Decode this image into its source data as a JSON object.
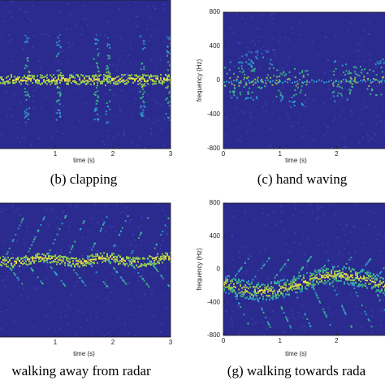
{
  "chart_data": [
    {
      "type": "spectrogram",
      "xlabel": "time (s)",
      "caption": "(b) clapping",
      "xlim": [
        0,
        3
      ],
      "xticks": [
        1,
        2,
        3
      ]
    },
    {
      "type": "spectrogram",
      "xlabel": "time (s)",
      "ylabel": "frequency (Hz)",
      "caption": "(c) hand waving",
      "xlim": [
        0,
        3
      ],
      "xticks": [
        0,
        1,
        2
      ],
      "ylim": [
        -800,
        800
      ],
      "yticks": [
        -800,
        -400,
        0,
        400,
        800
      ]
    },
    {
      "type": "spectrogram",
      "xlabel": "time (s)",
      "caption": "walking away from radar",
      "xlim": [
        0,
        3
      ],
      "xticks": [
        1,
        2,
        3
      ]
    },
    {
      "type": "spectrogram",
      "xlabel": "time (s)",
      "ylabel": "frequency (Hz)",
      "caption": "(g) walking towards rada",
      "xlim": [
        0,
        3
      ],
      "xticks": [
        0,
        1,
        2
      ],
      "ylim": [
        -800,
        800
      ],
      "yticks": [
        -800,
        -400,
        0,
        400,
        800
      ]
    }
  ]
}
